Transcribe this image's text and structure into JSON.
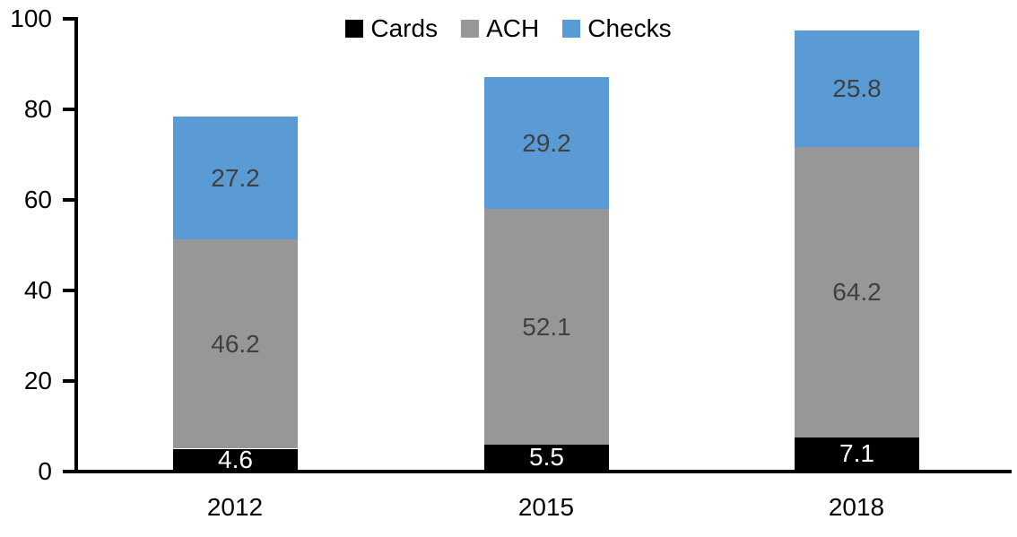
{
  "chart_data": {
    "type": "bar",
    "stacked": true,
    "title": "",
    "xlabel": "",
    "ylabel": "",
    "categories": [
      "2012",
      "2015",
      "2018"
    ],
    "series": [
      {
        "name": "Cards",
        "color": "#000000",
        "label_color": "#FFFFFF",
        "values": [
          4.6,
          5.5,
          7.1
        ]
      },
      {
        "name": "ACH",
        "color": "#979797",
        "label_color": "#404040",
        "values": [
          46.2,
          52.1,
          64.2
        ]
      },
      {
        "name": "Checks",
        "color": "#5B9BD5",
        "label_color": "#404040",
        "values": [
          27.2,
          29.2,
          25.8
        ]
      }
    ],
    "ylim": [
      0,
      100
    ],
    "yticks": [
      0,
      20,
      40,
      60,
      80,
      100
    ],
    "legend_position": "top-center",
    "grid": false,
    "axis_color": "#000000"
  }
}
